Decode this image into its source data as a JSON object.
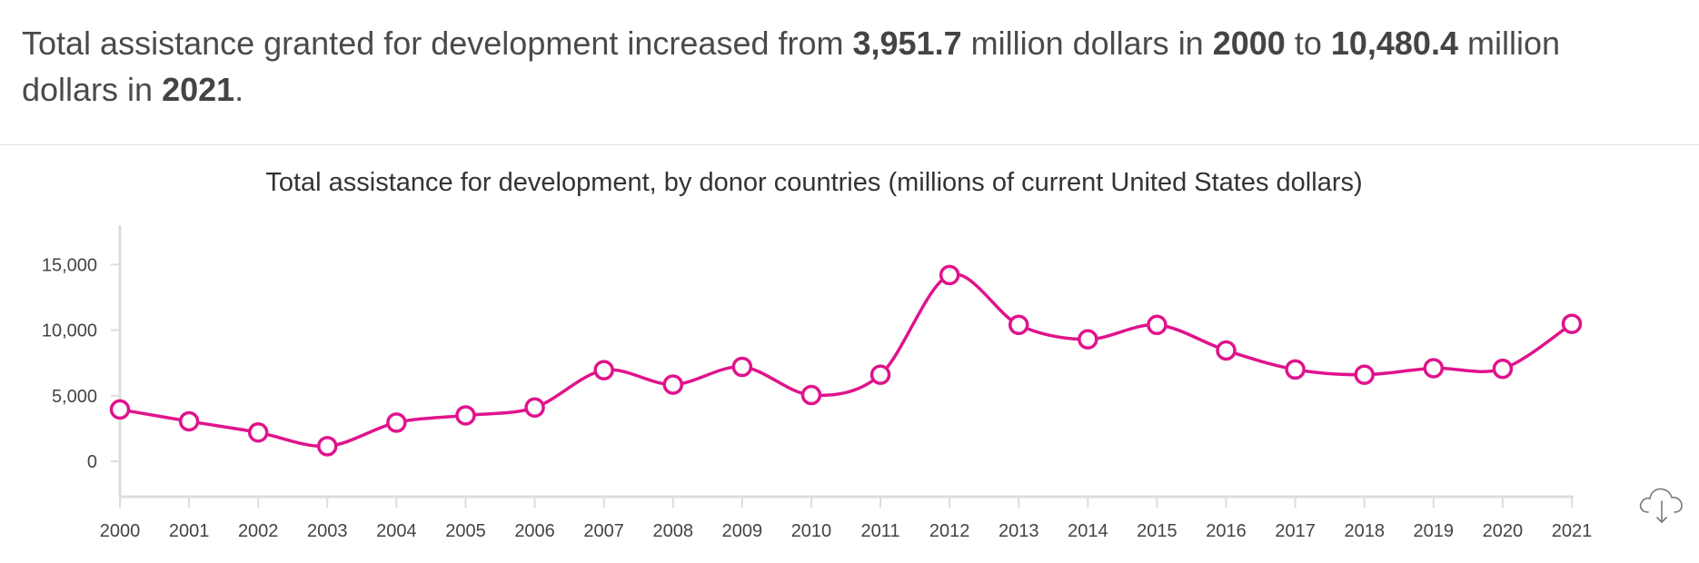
{
  "headline": {
    "p1": "Total assistance granted for development increased from ",
    "v1": "3,951.7",
    "p2": " million dollars in ",
    "y1": "2000",
    "p3": " to ",
    "v2": "10,480.4",
    "p4": " million dollars in ",
    "y2": "2021",
    "p5": "."
  },
  "download_icon": "cloud-download-icon",
  "colors": {
    "series": "#e0138c",
    "axis": "#dddddd",
    "text": "#444444"
  },
  "chart_data": {
    "type": "line",
    "title": "Total assistance for development, by donor countries (millions of current United States dollars)",
    "xlabel": "",
    "ylabel": "",
    "x": [
      "2000",
      "2001",
      "2002",
      "2003",
      "2004",
      "2005",
      "2006",
      "2007",
      "2008",
      "2009",
      "2010",
      "2011",
      "2012",
      "2013",
      "2014",
      "2015",
      "2016",
      "2017",
      "2018",
      "2019",
      "2020",
      "2021"
    ],
    "series": [
      {
        "values": [
          3951.7,
          3050,
          2200,
          1150,
          2950,
          3500,
          4100,
          6950,
          5850,
          7200,
          5050,
          6600,
          14200,
          10400,
          9300,
          10400,
          8450,
          7000,
          6600,
          7100,
          7050,
          10480.4
        ]
      }
    ],
    "ylim": [
      -2700,
      18000
    ],
    "yticks": [
      0,
      5000,
      10000,
      15000
    ],
    "ytick_labels": [
      "0",
      "5,000",
      "10,000",
      "15,000"
    ],
    "grid": false,
    "legend": "none"
  }
}
